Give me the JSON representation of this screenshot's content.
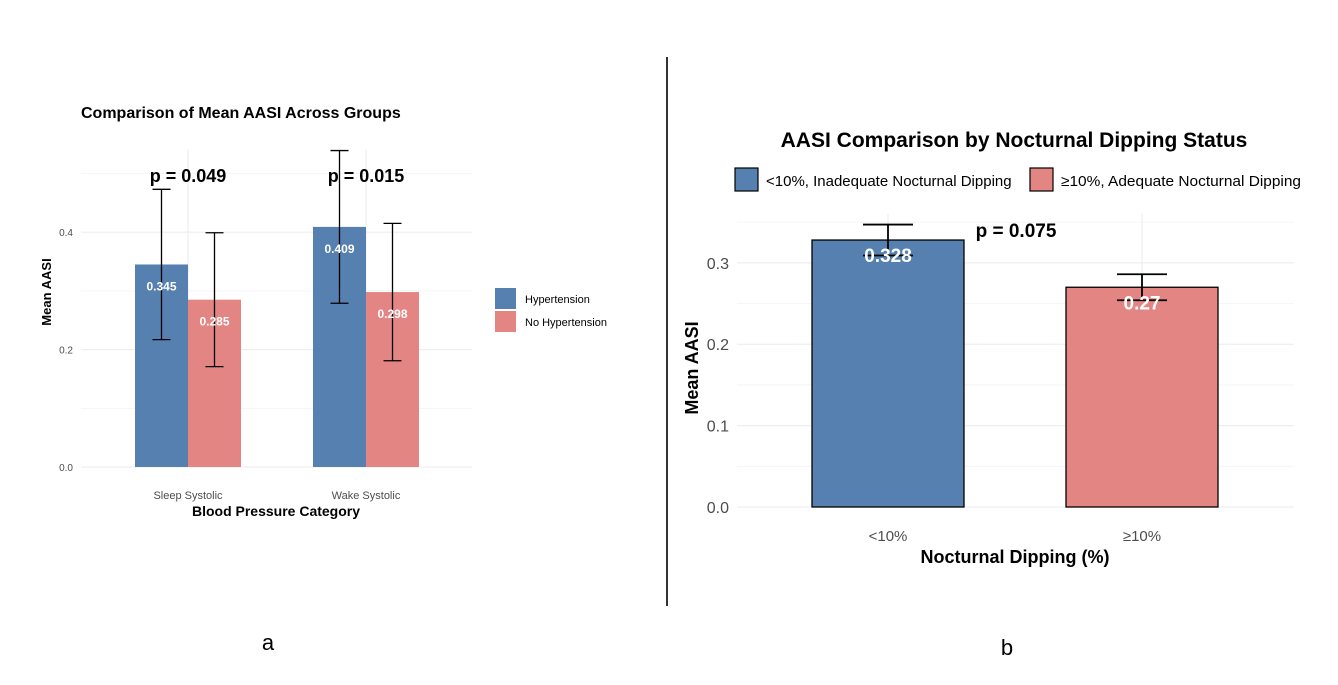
{
  "panel_labels": {
    "a": "a",
    "b": "b"
  },
  "colors": {
    "hypertension": "#5680b0",
    "no_hypertension": "#e38683",
    "grid": "#ebebeb",
    "divider": "#333333"
  },
  "chart_data": [
    {
      "type": "bar",
      "title": "Comparison of Mean AASI Across Groups",
      "xlabel": "Blood Pressure Category",
      "ylabel": "Mean AASI",
      "categories": [
        "Sleep Systolic",
        "Wake Systolic"
      ],
      "series": [
        {
          "name": "Hypertension",
          "values": [
            0.345,
            0.409
          ],
          "value_labels": [
            "0.345",
            "0.409"
          ],
          "err_low": [
            0.217,
            0.279
          ],
          "err_high": [
            0.473,
            0.539
          ],
          "color": "#5680b0"
        },
        {
          "name": "No Hypertension",
          "values": [
            0.285,
            0.298
          ],
          "value_labels": [
            "0.285",
            "0.298"
          ],
          "err_low": [
            0.171,
            0.181
          ],
          "err_high": [
            0.399,
            0.415
          ],
          "color": "#e38683"
        }
      ],
      "annotations": [
        "p = 0.049",
        "p = 0.015"
      ],
      "ylim": [
        0,
        0.54
      ],
      "yticks": [
        0.0,
        0.2,
        0.4
      ],
      "ytick_labels": [
        "0.0",
        "0.2",
        "0.4"
      ],
      "grid": true,
      "legend": "right"
    },
    {
      "type": "bar",
      "title": "AASI Comparison by Nocturnal Dipping Status",
      "xlabel": "Nocturnal Dipping (%)",
      "ylabel": "Mean AASI",
      "categories": [
        "<10%",
        "≥10%"
      ],
      "series": [
        {
          "name": "<10%, Inadequate Nocturnal Dipping",
          "category": "<10%",
          "value": 0.328,
          "value_label": "0.328",
          "err_low": 0.309,
          "err_high": 0.347,
          "color": "#5680b0"
        },
        {
          "name": "≥10%, Adequate Nocturnal Dipping",
          "category": "≥10%",
          "value": 0.27,
          "value_label": "0.27",
          "err_low": 0.254,
          "err_high": 0.286,
          "color": "#e38683"
        }
      ],
      "annotations": [
        "p = 0.075"
      ],
      "ylim": [
        0,
        0.36
      ],
      "yticks": [
        0.0,
        0.1,
        0.2,
        0.3
      ],
      "ytick_labels": [
        "0.0",
        "0.1",
        "0.2",
        "0.3"
      ],
      "grid": true,
      "legend": "top"
    }
  ]
}
